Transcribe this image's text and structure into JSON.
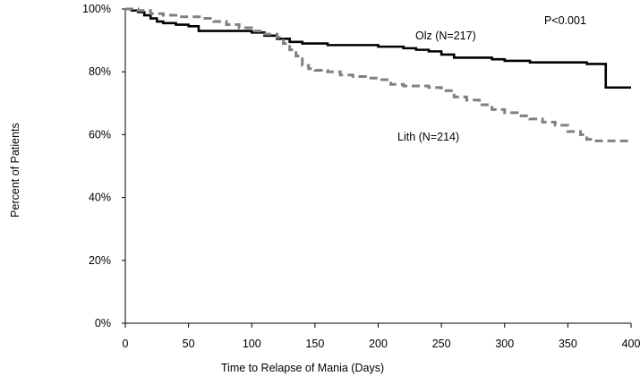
{
  "chart_data": {
    "type": "line",
    "title": "",
    "xlabel": "Time to Relapse of Mania  (Days)",
    "ylabel": "Percent of Patients",
    "xlim": [
      0,
      400
    ],
    "ylim": [
      0,
      100
    ],
    "xticks": [
      0,
      50,
      100,
      150,
      200,
      250,
      300,
      350,
      400
    ],
    "yticks": [
      0,
      20,
      40,
      60,
      80,
      100
    ],
    "ytick_suffix": "%",
    "grid": false,
    "annotation": "P<0.001",
    "series": [
      {
        "name": "Olz (N=217)",
        "color": "#000000",
        "dash": "solid",
        "step": true,
        "x": [
          0,
          5,
          10,
          15,
          20,
          25,
          30,
          40,
          50,
          58,
          70,
          95,
          100,
          110,
          120,
          130,
          140,
          160,
          200,
          220,
          230,
          240,
          250,
          260,
          290,
          300,
          320,
          340,
          350,
          365,
          380,
          400
        ],
        "y": [
          100,
          99.5,
          99,
          98,
          97,
          96,
          95.5,
          95,
          94.5,
          93,
          93,
          93,
          92.5,
          91.5,
          90.5,
          89.5,
          89,
          88.5,
          88,
          87.5,
          87,
          86.5,
          85.5,
          84.5,
          84,
          83.5,
          83,
          83,
          83,
          82.5,
          75,
          75
        ]
      },
      {
        "name": "Lith (N=214)",
        "color": "#808080",
        "dash": "dashed",
        "step": true,
        "x": [
          0,
          5,
          10,
          20,
          30,
          40,
          60,
          70,
          80,
          90,
          100,
          110,
          120,
          125,
          130,
          135,
          140,
          145,
          150,
          160,
          170,
          180,
          190,
          200,
          210,
          220,
          240,
          250,
          260,
          270,
          280,
          290,
          300,
          310,
          320,
          330,
          340,
          350,
          360,
          365,
          370,
          400
        ],
        "y": [
          100,
          100,
          99.5,
          98.5,
          98,
          97.5,
          97,
          96,
          95,
          94,
          93,
          92,
          91,
          89,
          87,
          85,
          82,
          81,
          80.5,
          80,
          79,
          78.5,
          78,
          77.5,
          76,
          75.5,
          75,
          74,
          72,
          71,
          69.5,
          68,
          67,
          66,
          65,
          64,
          63,
          61,
          60,
          58.5,
          58,
          58
        ]
      }
    ]
  }
}
